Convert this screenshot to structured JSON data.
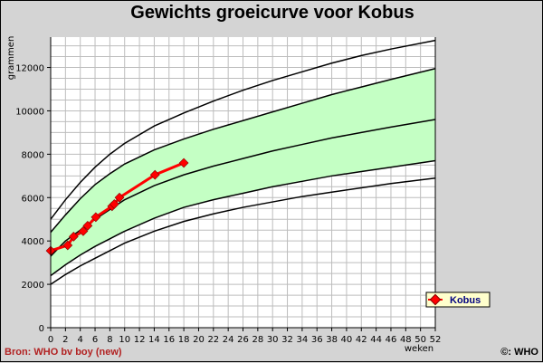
{
  "chart_data": {
    "type": "line",
    "title": "Gewichts groeicurve voor Kobus",
    "xlabel": "weken",
    "ylabel": "grammen",
    "xlim": [
      0,
      52
    ],
    "ylim": [
      0,
      13400
    ],
    "x_ticks": [
      0,
      2,
      4,
      6,
      8,
      10,
      12,
      14,
      16,
      18,
      20,
      22,
      24,
      26,
      28,
      30,
      32,
      34,
      36,
      38,
      40,
      42,
      44,
      46,
      48,
      50,
      52
    ],
    "y_ticks": [
      0,
      2000,
      4000,
      6000,
      8000,
      10000,
      12000
    ],
    "grid": true,
    "legend_position": "right",
    "colors": {
      "band": "#c4ffc4",
      "curve": "#000000",
      "series": "#ff0000",
      "marker": "#ff0000"
    },
    "reference_curves": [
      {
        "x": [
          0,
          2,
          4,
          6,
          8,
          10,
          14,
          18,
          22,
          26,
          30,
          34,
          38,
          42,
          46,
          52
        ],
        "values": [
          5000,
          5900,
          6700,
          7400,
          8000,
          8500,
          9300,
          9900,
          10450,
          10950,
          11400,
          11800,
          12200,
          12550,
          12850,
          13250
        ]
      },
      {
        "x": [
          0,
          2,
          4,
          6,
          8,
          10,
          14,
          18,
          22,
          26,
          30,
          34,
          38,
          42,
          46,
          52
        ],
        "values": [
          4400,
          5200,
          5950,
          6600,
          7100,
          7550,
          8200,
          8700,
          9150,
          9550,
          9950,
          10350,
          10750,
          11100,
          11450,
          11950
        ]
      },
      {
        "x": [
          0,
          2,
          4,
          6,
          8,
          10,
          14,
          18,
          22,
          26,
          30,
          34,
          38,
          42,
          46,
          52
        ],
        "values": [
          3300,
          4000,
          4500,
          5000,
          5450,
          5900,
          6550,
          7050,
          7450,
          7800,
          8150,
          8450,
          8750,
          9000,
          9250,
          9600
        ]
      },
      {
        "x": [
          0,
          2,
          4,
          6,
          8,
          10,
          14,
          18,
          22,
          26,
          30,
          34,
          38,
          42,
          46,
          52
        ],
        "values": [
          2400,
          2900,
          3350,
          3750,
          4100,
          4450,
          5050,
          5550,
          5900,
          6200,
          6500,
          6750,
          7000,
          7200,
          7400,
          7700
        ]
      },
      {
        "x": [
          0,
          2,
          4,
          6,
          8,
          10,
          14,
          18,
          22,
          26,
          30,
          34,
          38,
          42,
          46,
          52
        ],
        "values": [
          2000,
          2450,
          2850,
          3200,
          3550,
          3900,
          4450,
          4900,
          5250,
          5550,
          5800,
          6050,
          6250,
          6450,
          6650,
          6900
        ]
      }
    ],
    "series": [
      {
        "name": "Kobus",
        "x": [
          0,
          2.3,
          3.1,
          4.4,
          5.0,
          6.1,
          8.3,
          8.6,
          9.3,
          14.1,
          18.0
        ],
        "values": [
          3550,
          3800,
          4200,
          4450,
          4700,
          5100,
          5600,
          5700,
          6000,
          7050,
          7600
        ]
      }
    ],
    "source": "Bron: WHO bv boy (new)",
    "copyright": "©: WHO"
  }
}
